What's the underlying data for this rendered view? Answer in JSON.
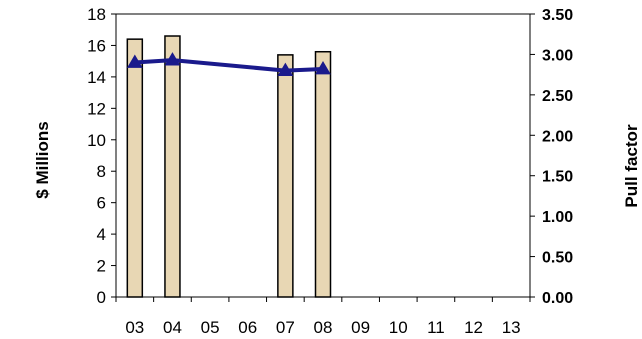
{
  "chart_data": {
    "type": "bar",
    "categories": [
      "03",
      "04",
      "05",
      "06",
      "07",
      "08",
      "09",
      "10",
      "11",
      "12",
      "13"
    ],
    "series": [
      {
        "axis": "left",
        "type": "bar",
        "values": [
          16.4,
          16.6,
          null,
          null,
          15.4,
          15.6,
          null,
          null,
          null,
          null,
          null
        ]
      },
      {
        "axis": "right",
        "type": "line",
        "values": [
          2.9,
          2.93,
          null,
          null,
          2.8,
          2.82,
          null,
          null,
          null,
          null,
          null
        ]
      }
    ],
    "ylabel": "$ Millions",
    "y2label": "Pull factor",
    "ylim": [
      0,
      18
    ],
    "y2lim": [
      0,
      3.5
    ],
    "yticks": [
      "0",
      "2",
      "4",
      "6",
      "8",
      "10",
      "12",
      "14",
      "16",
      "18"
    ],
    "y2ticks": [
      "0.00",
      "0.50",
      "1.00",
      "1.50",
      "2.00",
      "2.50",
      "3.00",
      "3.50"
    ],
    "grid": false,
    "colors": {
      "bar_fill": "#e8d7b4",
      "bar_stroke": "#000000",
      "line": "#1a1a8c",
      "marker": "#1a1a8c"
    }
  }
}
